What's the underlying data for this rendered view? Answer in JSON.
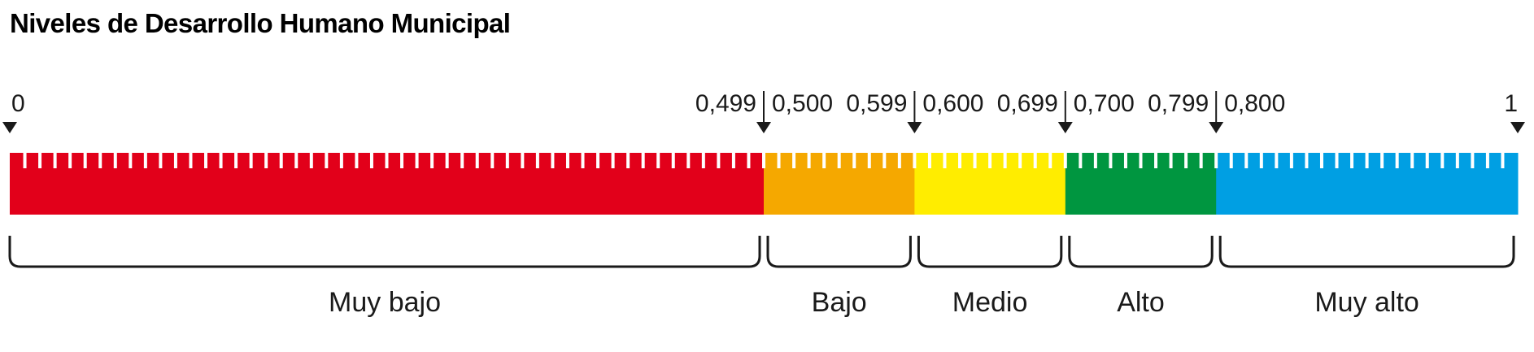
{
  "title": "Niveles de Desarrollo Humano Municipal",
  "scale": {
    "min": 0,
    "max": 1
  },
  "levels": [
    {
      "label": "Muy bajo",
      "low": 0,
      "high": 0.499,
      "low_text": "0",
      "high_text": "0,499",
      "color": "#e2001a"
    },
    {
      "label": "Bajo",
      "low": 0.5,
      "high": 0.599,
      "low_text": "0,500",
      "high_text": "0,599",
      "color": "#f5a800"
    },
    {
      "label": "Medio",
      "low": 0.6,
      "high": 0.699,
      "low_text": "0,600",
      "high_text": "0,699",
      "color": "#ffed00"
    },
    {
      "label": "Alto",
      "low": 0.7,
      "high": 0.799,
      "low_text": "0,700",
      "high_text": "0,799",
      "color": "#009640"
    },
    {
      "label": "Muy alto",
      "low": 0.8,
      "high": 1,
      "low_text": "0,800",
      "high_text": "1",
      "color": "#009fe3"
    }
  ],
  "icons": {
    "marker": "down-triangle-icon"
  }
}
